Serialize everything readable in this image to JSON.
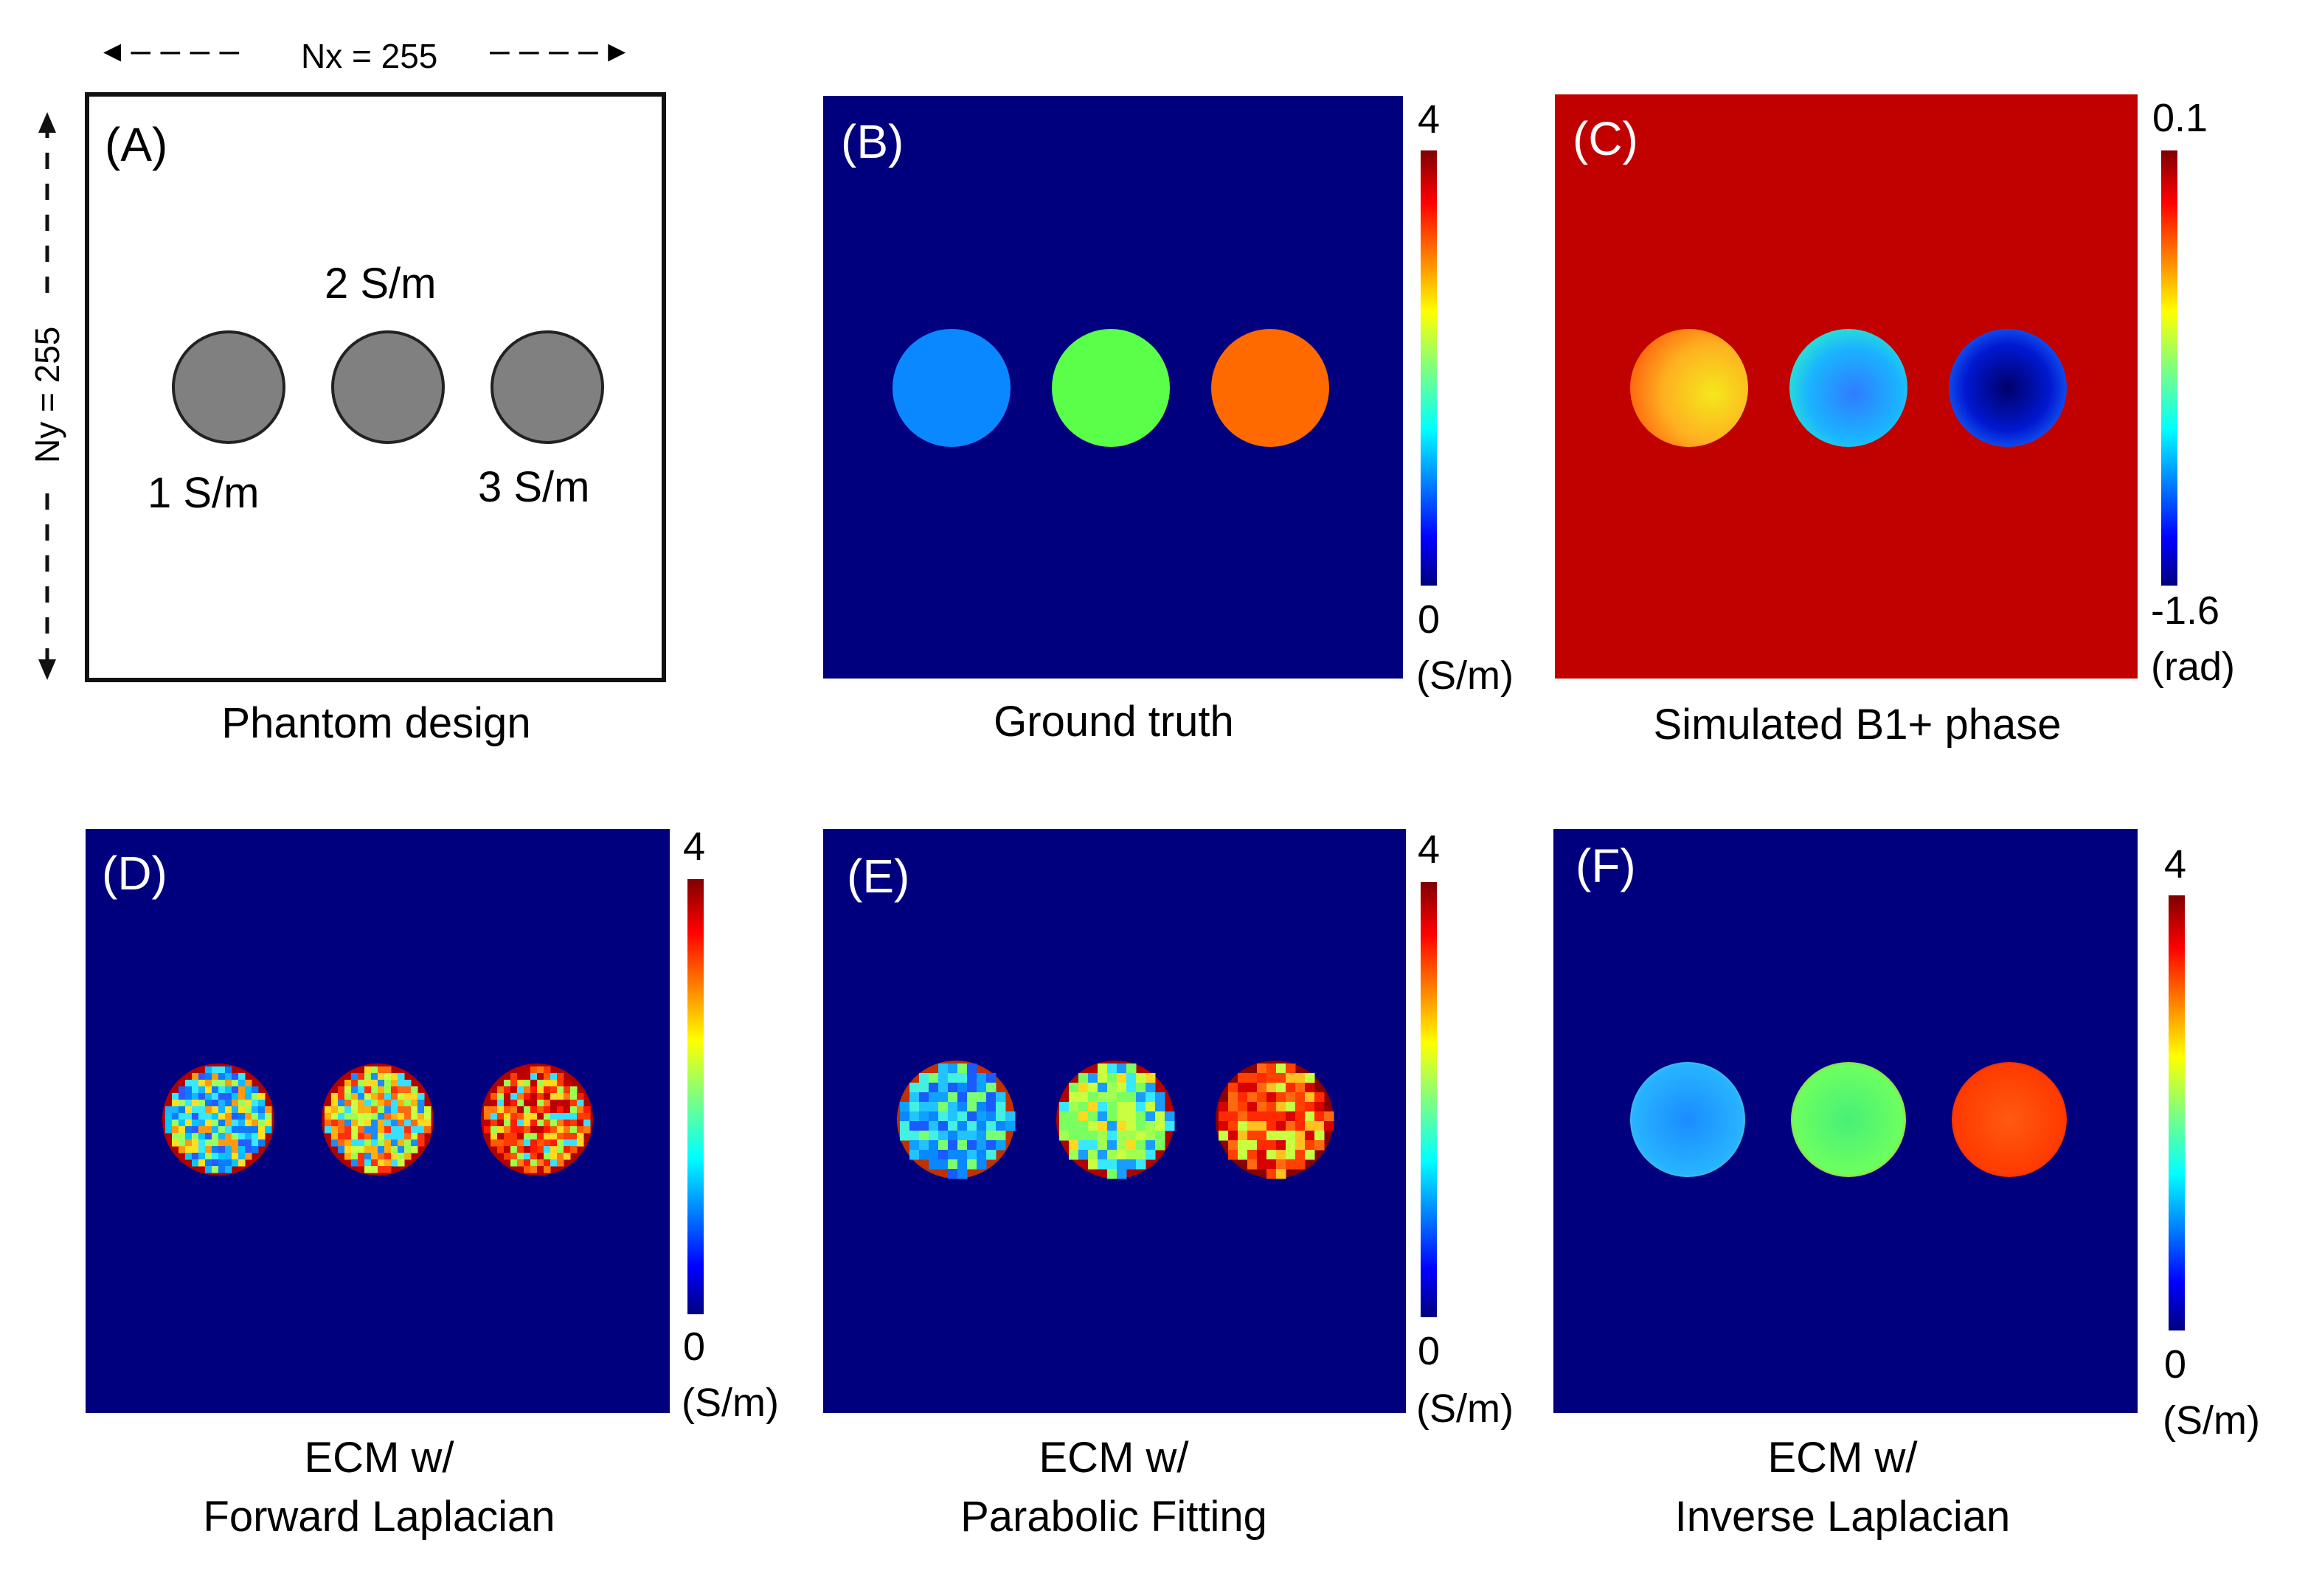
{
  "phantom": {
    "panel_tag": "(A)",
    "nx_label": "Nx = 255",
    "ny_label": "Ny = 255",
    "labels": {
      "left": "1 S/m",
      "middle": "2 S/m",
      "right": "3 S/m"
    },
    "caption": "Phantom design"
  },
  "panels": {
    "B": {
      "tag": "(B)",
      "caption": "Ground truth",
      "cbar_max": "4",
      "cbar_min": "0",
      "cbar_unit": "(S/m)"
    },
    "C": {
      "tag": "(C)",
      "caption": "Simulated B1+ phase",
      "cbar_max": "0.1",
      "cbar_min": "-1.6",
      "cbar_unit": "(rad)"
    },
    "D": {
      "tag": "(D)",
      "caption_line1": "ECM w/",
      "caption_line2": "Forward Laplacian",
      "cbar_max": "4",
      "cbar_min": "0",
      "cbar_unit": "(S/m)"
    },
    "E": {
      "tag": "(E)",
      "caption_line1": "ECM w/",
      "caption_line2": "Parabolic Fitting",
      "cbar_max": "4",
      "cbar_min": "0",
      "cbar_unit": "(S/m)"
    },
    "F": {
      "tag": "(F)",
      "caption_line1": "ECM w/",
      "caption_line2": "Inverse Laplacian",
      "cbar_max": "4",
      "cbar_min": "0",
      "cbar_unit": "(S/m)"
    }
  },
  "colors": {
    "background_low": "#00007f",
    "phase_background": "#c10000",
    "disk_gray": "#808080",
    "gt_left": "#0a88ff",
    "gt_mid": "#5aff4a",
    "gt_right": "#ff6a00"
  }
}
